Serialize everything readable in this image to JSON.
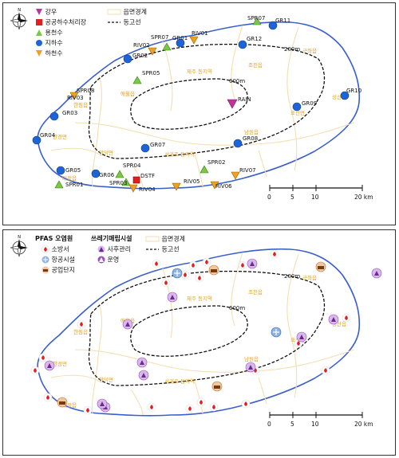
{
  "top_map": {
    "legend": {
      "rainfall": "강우",
      "sewage_plant": "공공하수처리장",
      "spring": "용천수",
      "groundwater": "지하수",
      "stream": "하천수",
      "boundary": "읍면경계",
      "contour": "등고선"
    },
    "contour_labels": [
      "200m",
      "600m"
    ],
    "town_labels": [
      "구좌읍",
      "조천읍",
      "제주 동지역",
      "애월읍",
      "한림읍",
      "한경면",
      "대정읍",
      "안덕면",
      "서귀포 동지역",
      "남원읍",
      "표선면",
      "성산읍"
    ],
    "stations": {
      "rain": "RAIN",
      "sewage": "DSTF",
      "springs": [
        "SPR07",
        "SPR05",
        "SPR08",
        "SPR04",
        "SPR03",
        "SPR02",
        "SPR01"
      ],
      "groundwater": [
        "GR11",
        "GR12",
        "GR01",
        "GR02",
        "GR03",
        "GR04",
        "GR05",
        "GR06",
        "GR07",
        "GR08",
        "GR09",
        "GR10"
      ],
      "streams": [
        "RIV01",
        "RIV02",
        "RIV03",
        "RIV04",
        "RIV05",
        "RIV06",
        "RIV07"
      ]
    },
    "scale": {
      "ticks": [
        "0",
        "5",
        "10",
        "20 km"
      ]
    }
  },
  "bottom_map": {
    "legend": {
      "title": "PFAS 오염원",
      "fire_station": "소방서",
      "aviation": "항공시설",
      "industrial": "공업단지",
      "landfill_title": "쓰레기매립시설",
      "post_management": "사후관리",
      "operating": "운영",
      "boundary": "읍면경계",
      "contour": "등고선"
    },
    "contour_labels": [
      "200m",
      "600m"
    ],
    "town_labels": [
      "구좌읍",
      "조천읍",
      "제주 동지역",
      "애월읍",
      "한림읍",
      "한경면",
      "대정읍",
      "안덕면",
      "서귀포 동지역",
      "남원읍",
      "표선면",
      "성산읍"
    ],
    "scale": {
      "ticks": [
        "0",
        "5",
        "10",
        "20 km"
      ]
    }
  },
  "colors": {
    "coast": "#3a5fcd",
    "boundary": "#f5deb3",
    "town_label": "#e0a020",
    "rain": "#c0339a",
    "sewage": "#e02020",
    "spring": "#7ac943",
    "groundwater": "#1e64d8",
    "stream": "#f0a020",
    "fire": "#e02020",
    "landfill": "#9b4fc0"
  }
}
